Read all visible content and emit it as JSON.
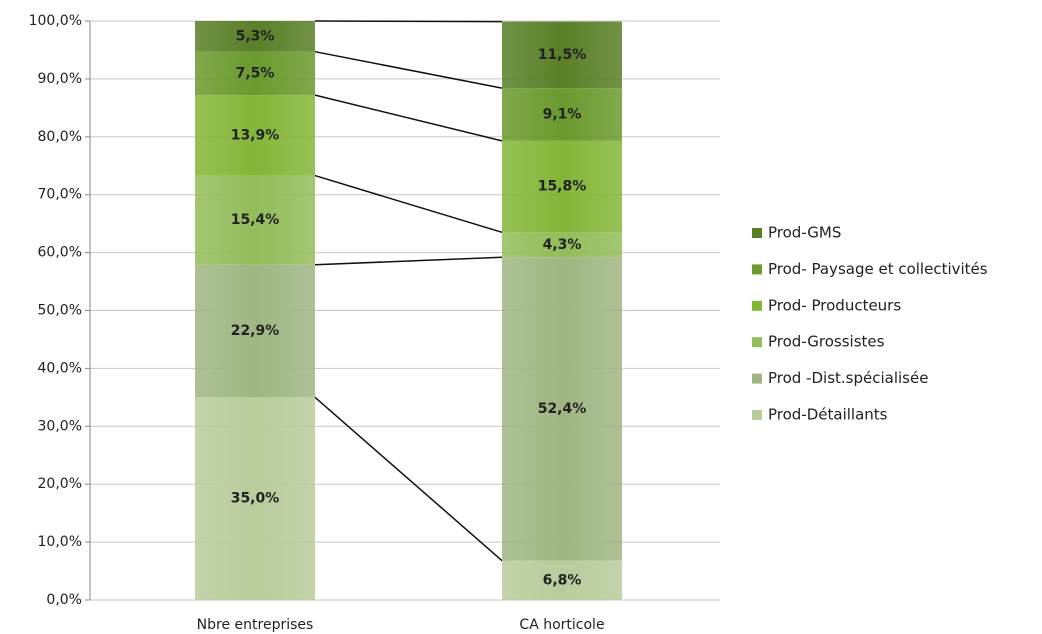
{
  "chart_data": {
    "type": "stacked_bar",
    "categories": [
      "Nbre entreprises",
      "CA horticole"
    ],
    "series": [
      {
        "name": "Prod-Détaillants",
        "color": "#b9cc9c",
        "values": [
          35.0,
          6.8
        ],
        "value_labels": [
          "35,0%",
          "6,8%"
        ]
      },
      {
        "name": "Prod -Dist.spécialisée",
        "color": "#9fb683",
        "values": [
          22.9,
          52.4
        ],
        "value_labels": [
          "22,9%",
          "52,4%"
        ]
      },
      {
        "name": "Prod-Grossistes",
        "color": "#93bd5a",
        "values": [
          15.4,
          4.3
        ],
        "value_labels": [
          "15,4%",
          "4,3%"
        ]
      },
      {
        "name": "Prod- Producteurs",
        "color": "#84b638",
        "values": [
          13.9,
          15.8
        ],
        "value_labels": [
          "13,9%",
          "15,8%"
        ]
      },
      {
        "name": "Prod- Paysage et collectivités",
        "color": "#6b9a2d",
        "values": [
          7.5,
          9.1
        ],
        "value_labels": [
          "7,5%",
          "9,1%"
        ]
      },
      {
        "name": "Prod-GMS",
        "color": "#597f27",
        "values": [
          5.3,
          11.5
        ],
        "value_labels": [
          "5,3%",
          "11,5%"
        ]
      }
    ],
    "ylim": [
      0,
      100
    ],
    "yticks": [
      {
        "value": 0,
        "label": "0,0%"
      },
      {
        "value": 10,
        "label": "10,0%"
      },
      {
        "value": 20,
        "label": "20,0%"
      },
      {
        "value": 30,
        "label": "30,0%"
      },
      {
        "value": 40,
        "label": "40,0%"
      },
      {
        "value": 50,
        "label": "50,0%"
      },
      {
        "value": 60,
        "label": "60,0%"
      },
      {
        "value": 70,
        "label": "70,0%"
      },
      {
        "value": 80,
        "label": "80,0%"
      },
      {
        "value": 90,
        "label": "90,0%"
      },
      {
        "value": 100,
        "label": "100,0%"
      }
    ],
    "grid": true,
    "series_lines": true,
    "legend": "right"
  }
}
